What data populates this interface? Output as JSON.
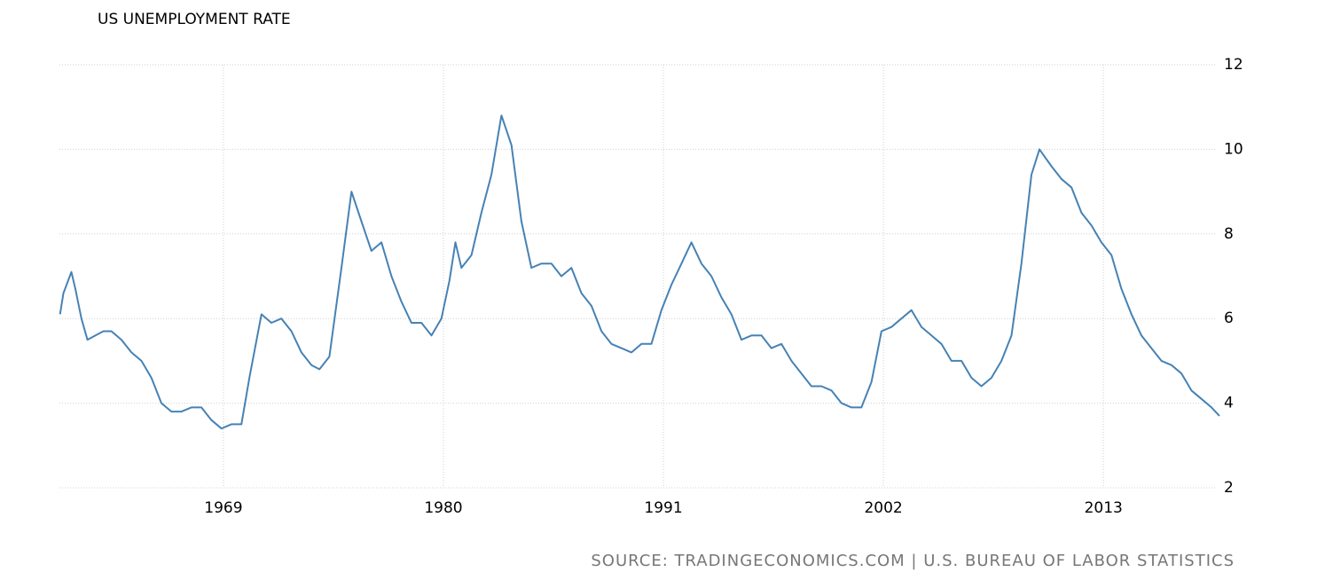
{
  "chart_data": {
    "type": "line",
    "title": "US UNEMPLOYMENT RATE",
    "source": "SOURCE: TRADINGECONOMICS.COM | U.S. BUREAU OF LABOR STATISTICS",
    "x": [
      1960.83,
      1961.0,
      1961.4,
      1961.6,
      1961.9,
      1962.2,
      1962.6,
      1963.0,
      1963.4,
      1963.9,
      1964.4,
      1964.9,
      1965.4,
      1965.9,
      1966.4,
      1966.9,
      1967.4,
      1967.9,
      1968.4,
      1968.9,
      1969.4,
      1969.9,
      1970.3,
      1970.9,
      1971.4,
      1971.9,
      1972.4,
      1972.9,
      1973.4,
      1973.8,
      1974.3,
      1974.9,
      1975.4,
      1975.9,
      1976.4,
      1976.9,
      1977.4,
      1977.9,
      1978.4,
      1978.9,
      1979.4,
      1979.9,
      1980.3,
      1980.6,
      1980.9,
      1981.4,
      1981.9,
      1982.4,
      1982.9,
      1983.4,
      1983.9,
      1984.4,
      1984.9,
      1985.4,
      1985.9,
      1986.4,
      1986.9,
      1987.4,
      1987.9,
      1988.4,
      1988.9,
      1989.4,
      1989.9,
      1990.4,
      1990.9,
      1991.4,
      1991.9,
      1992.4,
      1992.9,
      1993.4,
      1993.9,
      1994.4,
      1994.9,
      1995.4,
      1995.9,
      1996.4,
      1996.9,
      1997.4,
      1997.9,
      1998.4,
      1998.9,
      1999.4,
      1999.9,
      2000.4,
      2000.9,
      2001.4,
      2001.9,
      2002.4,
      2002.9,
      2003.4,
      2003.9,
      2004.4,
      2004.9,
      2005.4,
      2005.9,
      2006.4,
      2006.9,
      2007.4,
      2007.9,
      2008.4,
      2008.9,
      2009.4,
      2009.8,
      2010.4,
      2010.9,
      2011.4,
      2011.9,
      2012.4,
      2012.9,
      2013.4,
      2013.9,
      2014.4,
      2014.9,
      2015.4,
      2015.9,
      2016.4,
      2016.9,
      2017.4,
      2017.9,
      2018.4,
      2018.8
    ],
    "series": [
      {
        "name": "US Unemployment Rate",
        "color": "#4682b4",
        "values": [
          6.1,
          6.6,
          7.1,
          6.7,
          6.0,
          5.5,
          5.6,
          5.7,
          5.7,
          5.5,
          5.2,
          5.0,
          4.6,
          4.0,
          3.8,
          3.8,
          3.9,
          3.9,
          3.6,
          3.4,
          3.5,
          3.5,
          4.6,
          6.1,
          5.9,
          6.0,
          5.7,
          5.2,
          4.9,
          4.8,
          5.1,
          7.2,
          9.0,
          8.3,
          7.6,
          7.8,
          7.0,
          6.4,
          5.9,
          5.9,
          5.6,
          6.0,
          6.9,
          7.8,
          7.2,
          7.5,
          8.5,
          9.4,
          10.8,
          10.1,
          8.3,
          7.2,
          7.3,
          7.3,
          7.0,
          7.2,
          6.6,
          6.3,
          5.7,
          5.4,
          5.3,
          5.2,
          5.4,
          5.4,
          6.2,
          6.8,
          7.3,
          7.8,
          7.3,
          7.0,
          6.5,
          6.1,
          5.5,
          5.6,
          5.6,
          5.3,
          5.4,
          5.0,
          4.7,
          4.4,
          4.4,
          4.3,
          4.0,
          3.9,
          3.9,
          4.5,
          5.7,
          5.8,
          6.0,
          6.2,
          5.8,
          5.6,
          5.4,
          5.0,
          5.0,
          4.6,
          4.4,
          4.6,
          5.0,
          5.6,
          7.3,
          9.4,
          10.0,
          9.6,
          9.3,
          9.1,
          8.5,
          8.2,
          7.8,
          7.5,
          6.7,
          6.1,
          5.6,
          5.3,
          5.0,
          4.9,
          4.7,
          4.3,
          4.1,
          3.9,
          3.7
        ]
      }
    ],
    "xlim": [
      1960.8,
      2018.8
    ],
    "xticks": [
      1969,
      1980,
      1991,
      2002,
      2013
    ],
    "ylim": [
      2,
      12
    ],
    "yticks": [
      2,
      4,
      6,
      8,
      10,
      12
    ],
    "grid": true
  }
}
